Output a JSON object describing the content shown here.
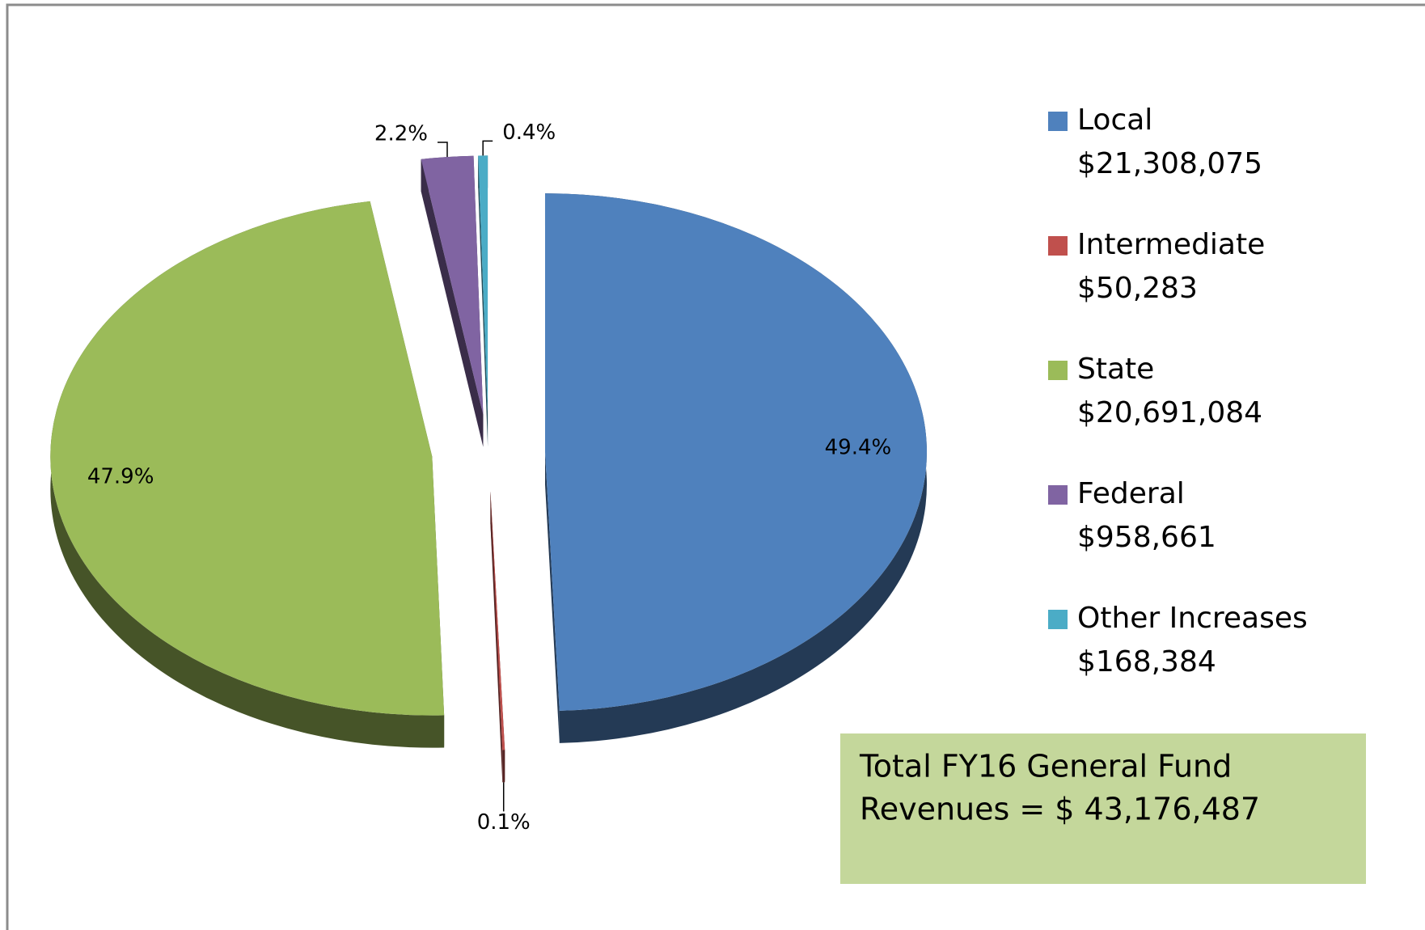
{
  "chart_data": {
    "type": "pie",
    "categories": [
      "Local",
      "Intermediate",
      "State",
      "Federal",
      "Other Increases"
    ],
    "values": [
      49.4,
      0.1,
      47.9,
      2.2,
      0.4
    ],
    "value_labels": [
      "49.4%",
      "0.1%",
      "47.9%",
      "2.2%",
      "0.4%"
    ],
    "colors": [
      "#4f81bd",
      "#c0504d",
      "#9bbb59",
      "#8064a2",
      "#4bacc6"
    ],
    "legend_amounts": [
      "$21,308,075",
      "$50,283",
      "$20,691,084",
      "$958,661",
      "$168,384"
    ],
    "legend": "right",
    "annotation": [
      "Total FY16 General Fund",
      "Revenues = $ 43,176,487"
    ]
  }
}
